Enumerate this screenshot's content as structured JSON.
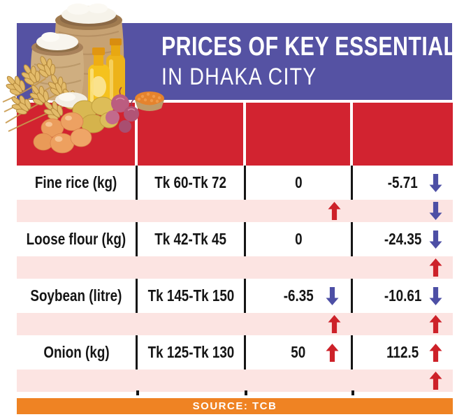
{
  "title": {
    "line1": "PRICES OF KEY ESSENTIALS",
    "line2": "IN DHAKA CITY"
  },
  "source_bar": {
    "text": "SOURCE: TCB"
  },
  "illustration": {
    "name": "food-collage",
    "depicts": "rice sack, flour sack, wheat stalks, soybean oil bottles, potatoes, onions, lentils and eggs"
  },
  "colors": {
    "banner-purple": "#5552a3",
    "table-red": "#d22330",
    "row-pink": "#fce4e2",
    "source-orange": "#ef8323",
    "arrow-red": "#cd2129",
    "arrow-blue": "#4d4fa5",
    "ink": "#151515"
  },
  "table": {
    "header_labels": [
      "",
      "",
      "",
      ""
    ],
    "rows": [
      {
        "item": "Fine rice (kg)",
        "price_range": "Tk 60-Tk 72",
        "change1": "0",
        "change1_arrow": "",
        "change2": "-5.71",
        "change2_arrow": "down"
      },
      {
        "item": "Loose flour (kg)",
        "price_range": "Tk 42-Tk 45",
        "change1": "0",
        "change1_arrow": "",
        "change2": "-24.35",
        "change2_arrow": "down"
      },
      {
        "item": "Soybean (litre)",
        "price_range": "Tk 145-Tk 150",
        "change1": "-6.35",
        "change1_arrow": "down",
        "change2": "-10.61",
        "change2_arrow": "down"
      },
      {
        "item": "Onion (kg)",
        "price_range": "Tk 125-Tk 130",
        "change1": "50",
        "change1_arrow": "up",
        "change2": "112.5",
        "change2_arrow": "up"
      }
    ],
    "spacer_rows": [
      {
        "change1_arrow": "up",
        "change2_arrow": "down"
      },
      {
        "change1_arrow": "",
        "change2_arrow": "up"
      },
      {
        "change1_arrow": "up",
        "change2_arrow": "up"
      },
      {
        "change1_arrow": "",
        "change2_arrow": "up"
      }
    ]
  },
  "chart_data": {
    "type": "table",
    "title": "PRICES OF KEY ESSENTIALS IN DHAKA CITY",
    "source": "SOURCE: TCB",
    "header_labels": [
      "",
      "",
      "",
      ""
    ],
    "rows": [
      [
        "Fine rice (kg)",
        "Tk 60-Tk 72",
        "0",
        "-5.71 ↓"
      ],
      [
        "Loose flour (kg)",
        "Tk 42-Tk 45",
        "0",
        "-24.35 ↓"
      ],
      [
        "Soybean (litre)",
        "Tk 145-Tk 150",
        "-6.35 ↓",
        "-10.61 ↓"
      ],
      [
        "Onion (kg)",
        "Tk 125-Tk 130",
        "50 ↑",
        "112.5 ↑"
      ]
    ],
    "interleaved_spacer_arrows": [
      [
        "",
        "",
        "↑",
        "↓"
      ],
      [
        "",
        "",
        "",
        "↑"
      ],
      [
        "",
        "",
        "↑",
        "↑"
      ],
      [
        "",
        "",
        "",
        "↑"
      ]
    ],
    "arrow_colors": {
      "up": "#cd2129",
      "down": "#4d4fa5"
    }
  }
}
